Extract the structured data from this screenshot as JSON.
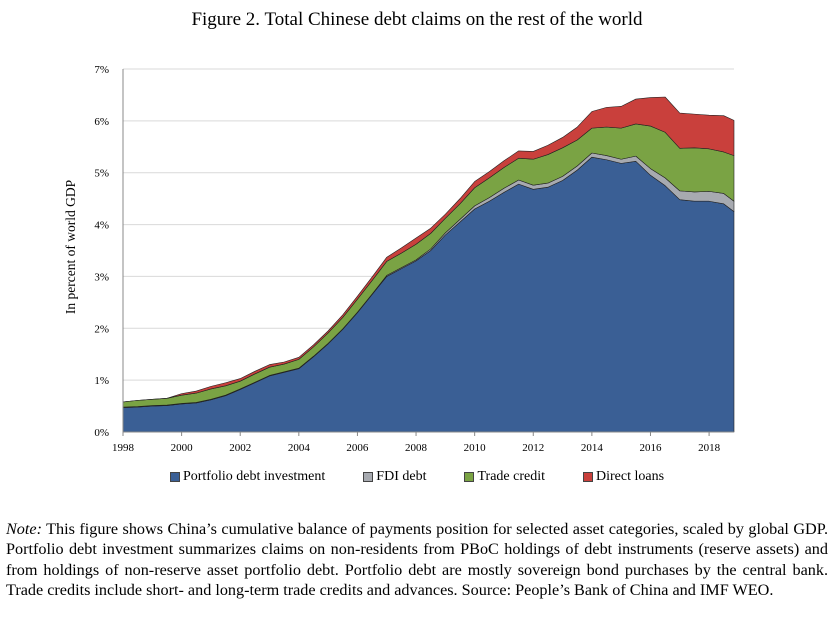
{
  "figure": {
    "title": "Figure 2. Total Chinese debt claims on the rest of the world",
    "note_label": "Note:",
    "note_text": " This figure shows China’s cumulative balance of payments position for selected asset categories, scaled by global GDP. Portfolio debt investment summarizes claims on non-residents from PBoC holdings of debt instruments (reserve assets) and from holdings of non-reserve asset portfolio debt. Portfolio debt are mostly sovereign bond purchases by the central bank. Trade credits include short- and long-term trade credits and advances. Source: People’s Bank of China and IMF WEO."
  },
  "chart_data": {
    "type": "area",
    "stacked": true,
    "title": "Figure 2. Total Chinese debt claims on the rest of the world",
    "xlabel": "",
    "ylabel": "In percent of world GDP",
    "xlim": [
      1998,
      2018.85
    ],
    "ylim": [
      0,
      7
    ],
    "x_ticks": [
      1998,
      2000,
      2002,
      2004,
      2006,
      2008,
      2010,
      2012,
      2014,
      2016,
      2018
    ],
    "y_ticks": [
      "0%",
      "1%",
      "2%",
      "3%",
      "4%",
      "5%",
      "6%",
      "7%"
    ],
    "grid": "horizontal",
    "legend_position": "bottom",
    "x": [
      1998,
      1998.5,
      1999,
      1999.5,
      2000,
      2000.5,
      2001,
      2001.5,
      2002,
      2002.5,
      2003,
      2003.5,
      2004,
      2004.5,
      2005,
      2005.5,
      2006,
      2006.5,
      2007,
      2007.5,
      2008,
      2008.5,
      2009,
      2009.5,
      2010,
      2010.5,
      2011,
      2011.5,
      2012,
      2012.5,
      2013,
      2013.5,
      2014,
      2014.5,
      2015,
      2015.5,
      2016,
      2016.5,
      2017,
      2017.5,
      2018,
      2018.5,
      2018.85
    ],
    "series": [
      {
        "name": "Portfolio debt investment",
        "color": "#3a5f95",
        "values": [
          0.47,
          0.48,
          0.5,
          0.51,
          0.54,
          0.56,
          0.62,
          0.7,
          0.82,
          0.95,
          1.08,
          1.15,
          1.22,
          1.45,
          1.7,
          1.98,
          2.3,
          2.65,
          3.0,
          3.15,
          3.3,
          3.5,
          3.8,
          4.05,
          4.3,
          4.45,
          4.62,
          4.78,
          4.68,
          4.72,
          4.85,
          5.05,
          5.3,
          5.25,
          5.18,
          5.22,
          4.95,
          4.75,
          4.48,
          4.45,
          4.45,
          4.4,
          4.25
        ]
      },
      {
        "name": "FDI debt",
        "color": "#a7aab0",
        "values": [
          0.01,
          0.01,
          0.01,
          0.01,
          0.01,
          0.01,
          0.01,
          0.01,
          0.01,
          0.01,
          0.01,
          0.01,
          0.01,
          0.01,
          0.01,
          0.01,
          0.01,
          0.01,
          0.02,
          0.02,
          0.02,
          0.03,
          0.04,
          0.05,
          0.06,
          0.07,
          0.08,
          0.08,
          0.08,
          0.08,
          0.08,
          0.08,
          0.08,
          0.08,
          0.08,
          0.1,
          0.13,
          0.15,
          0.17,
          0.18,
          0.19,
          0.2,
          0.2
        ]
      },
      {
        "name": "Trade credit",
        "color": "#7aa344",
        "values": [
          0.1,
          0.12,
          0.12,
          0.13,
          0.16,
          0.18,
          0.2,
          0.18,
          0.15,
          0.16,
          0.16,
          0.15,
          0.17,
          0.18,
          0.2,
          0.22,
          0.25,
          0.26,
          0.27,
          0.28,
          0.3,
          0.3,
          0.28,
          0.3,
          0.35,
          0.38,
          0.4,
          0.42,
          0.5,
          0.55,
          0.55,
          0.5,
          0.48,
          0.55,
          0.6,
          0.62,
          0.82,
          0.88,
          0.82,
          0.85,
          0.82,
          0.8,
          0.88
        ]
      },
      {
        "name": "Direct loans",
        "color": "#c9403c",
        "values": [
          0.0,
          0.0,
          0.0,
          0.0,
          0.03,
          0.04,
          0.05,
          0.06,
          0.05,
          0.05,
          0.05,
          0.04,
          0.04,
          0.04,
          0.04,
          0.05,
          0.06,
          0.07,
          0.08,
          0.1,
          0.12,
          0.1,
          0.08,
          0.1,
          0.12,
          0.12,
          0.13,
          0.14,
          0.15,
          0.18,
          0.2,
          0.25,
          0.32,
          0.38,
          0.42,
          0.48,
          0.55,
          0.68,
          0.68,
          0.65,
          0.65,
          0.7,
          0.68
        ]
      }
    ]
  }
}
